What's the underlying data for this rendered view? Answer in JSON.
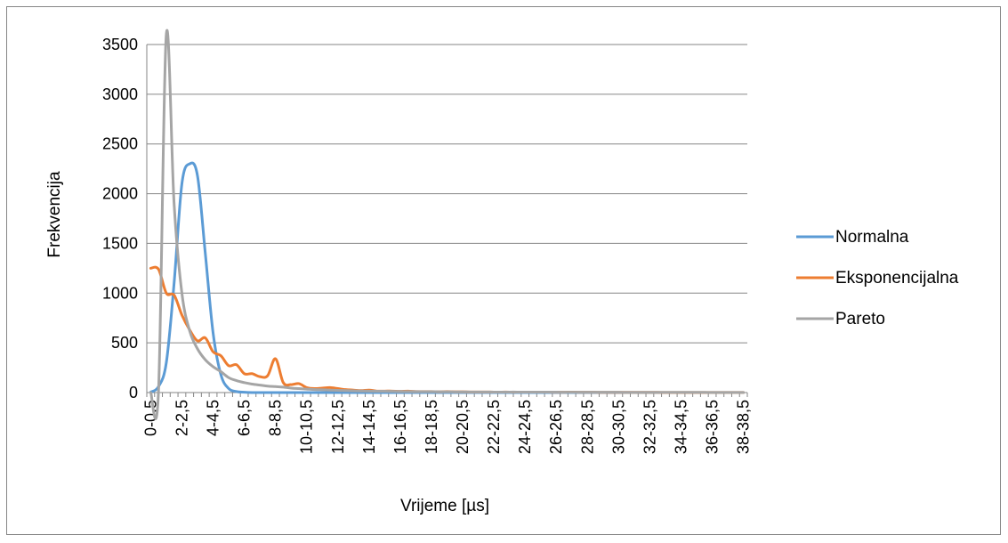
{
  "chart_data": {
    "type": "line",
    "xlabel": "Vrijeme [µs]",
    "ylabel": "Frekvencija",
    "ylim": [
      0,
      3500
    ],
    "yticks": [
      0,
      500,
      1000,
      1500,
      2000,
      2500,
      3000,
      3500
    ],
    "grid": true,
    "legend_position": "right",
    "categories": [
      "0-0,5",
      "0,5-1",
      "1-1,5",
      "1,5-2",
      "2-2,5",
      "2,5-3",
      "3-3,5",
      "3,5-4",
      "4-4,5",
      "4,5-5",
      "5-5,5",
      "5,5-6",
      "6-6,5",
      "6,5-7",
      "7-7,5",
      "7,5-8",
      "8-8,5",
      "8,5-9",
      "9-9,5",
      "9,5-10",
      "10-10,5",
      "10,5-11",
      "11-11,5",
      "11,5-12",
      "12-12,5",
      "12,5-13",
      "13-13,5",
      "13,5-14",
      "14-14,5",
      "14,5-15",
      "15-15,5",
      "15,5-16",
      "16-16,5",
      "16,5-17",
      "17-17,5",
      "17,5-18",
      "18-18,5",
      "18,5-19",
      "19-19,5",
      "19,5-20",
      "20-20,5",
      "20,5-21",
      "21-21,5",
      "21,5-22",
      "22-22,5",
      "22,5-23",
      "23-23,5",
      "23,5-24",
      "24-24,5",
      "24,5-25",
      "25-25,5",
      "25,5-26",
      "26-26,5",
      "26,5-27",
      "27-27,5",
      "27,5-28",
      "28-28,5",
      "28,5-29",
      "29-29,5",
      "29,5-30",
      "30-30,5",
      "30,5-31",
      "31-31,5",
      "31,5-32",
      "32-32,5",
      "32,5-33",
      "33-33,5",
      "33,5-34",
      "34-34,5",
      "34,5-35",
      "35-35,5",
      "35,5-36",
      "36-36,5",
      "36,5-37",
      "37-37,5",
      "37,5-38",
      "38-38,5"
    ],
    "xtick_labels_shown": [
      "0-0,5",
      "2-2,5",
      "4-4,5",
      "6-6,5",
      "8-8,5",
      "10-10,5",
      "12-12,5",
      "14-14,5",
      "16-16,5",
      "18-18,5",
      "20-20,5",
      "22-22,5",
      "24-24,5",
      "26-26,5",
      "28-28,5",
      "30-30,5",
      "32-32,5",
      "34-34,5",
      "36-36,5",
      "38-38,5"
    ],
    "series": [
      {
        "name": "Normalna",
        "color": "#5b9bd5",
        "values": [
          5,
          60,
          300,
          1100,
          2100,
          2300,
          2180,
          1400,
          600,
          180,
          40,
          10,
          3,
          0,
          0,
          0,
          0,
          0,
          0,
          0,
          0,
          0,
          0,
          0,
          0,
          0,
          0,
          0,
          0,
          0,
          0,
          0,
          0,
          0,
          0,
          0,
          0,
          0,
          0,
          0,
          0,
          0,
          0,
          0,
          0,
          0,
          0,
          0,
          0,
          0,
          0,
          0,
          0,
          0,
          0,
          0,
          0,
          0,
          0,
          0,
          0,
          0,
          0,
          0,
          0,
          0,
          0,
          0,
          0,
          0,
          0,
          0,
          0,
          0,
          0,
          0,
          0
        ]
      },
      {
        "name": "Eksponencijalna",
        "color": "#ed7d31",
        "values": [
          1250,
          1240,
          1000,
          980,
          780,
          630,
          520,
          550,
          410,
          370,
          270,
          280,
          190,
          190,
          160,
          170,
          340,
          100,
          80,
          90,
          50,
          40,
          45,
          50,
          40,
          30,
          25,
          20,
          25,
          15,
          15,
          15,
          12,
          15,
          10,
          10,
          10,
          8,
          10,
          8,
          8,
          6,
          6,
          6,
          5,
          5,
          5,
          4,
          4,
          4,
          4,
          4,
          3,
          3,
          5,
          3,
          3,
          3,
          2,
          2,
          2,
          2,
          2,
          2,
          2,
          2,
          1,
          1,
          1,
          1,
          1,
          1,
          1,
          1,
          1,
          1,
          1
        ]
      },
      {
        "name": "Pareto",
        "color": "#a5a5a5",
        "values": [
          0,
          10,
          3600,
          1900,
          1000,
          620,
          440,
          330,
          260,
          210,
          150,
          120,
          100,
          85,
          75,
          65,
          60,
          55,
          45,
          40,
          35,
          30,
          28,
          25,
          22,
          20,
          18,
          16,
          15,
          14,
          13,
          12,
          11,
          10,
          10,
          9,
          9,
          8,
          8,
          7,
          7,
          6,
          6,
          6,
          5,
          5,
          5,
          5,
          4,
          4,
          4,
          4,
          4,
          3,
          3,
          3,
          3,
          3,
          3,
          3,
          3,
          2,
          2,
          2,
          2,
          2,
          2,
          2,
          2,
          2,
          2,
          2,
          1,
          1,
          1,
          1,
          1
        ]
      }
    ]
  }
}
